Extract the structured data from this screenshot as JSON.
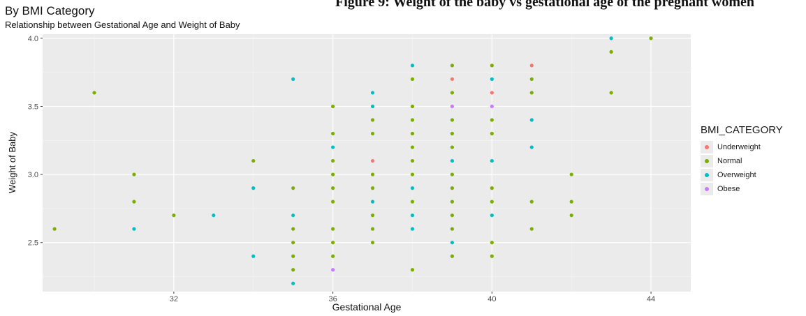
{
  "header": {
    "cropped_heading": "Figure 9: Weight of the baby vs gestational age of the pregnant women"
  },
  "chart_data": {
    "type": "scatter",
    "title": "By BMI Category",
    "subtitle": "Relationship between Gestational Age and Weight of Baby",
    "xlabel": "Gestational Age",
    "ylabel": "Weight of Baby",
    "xlim": [
      28.7,
      45.0
    ],
    "ylim": [
      2.14,
      4.03
    ],
    "x_ticks": [
      32,
      36,
      40,
      44
    ],
    "y_ticks": [
      2.5,
      3.0,
      3.5,
      4.0
    ],
    "y_tick_labels": [
      "2.5",
      "3.0",
      "3.5",
      "4.0"
    ],
    "grid": true,
    "legend_position": "right",
    "legend": {
      "title": "BMI_CATEGORY",
      "entries": [
        {
          "name": "Underweight",
          "color": "#f8766d"
        },
        {
          "name": "Normal",
          "color": "#7cae00"
        },
        {
          "name": "Overweight",
          "color": "#00bfc4"
        },
        {
          "name": "Obese",
          "color": "#c77cff"
        }
      ]
    },
    "series": [
      {
        "name": "Underweight",
        "color": "#f8766d",
        "points": [
          [
            37,
            3.1
          ],
          [
            39,
            3.7
          ],
          [
            40,
            3.6
          ],
          [
            41,
            3.8
          ]
        ]
      },
      {
        "name": "Normal",
        "color": "#7cae00",
        "points": [
          [
            29,
            2.6
          ],
          [
            30,
            3.6
          ],
          [
            31,
            3.0
          ],
          [
            31,
            2.8
          ],
          [
            32,
            2.7
          ],
          [
            34,
            3.1
          ],
          [
            35,
            2.9
          ],
          [
            35,
            2.6
          ],
          [
            35,
            2.5
          ],
          [
            35,
            2.4
          ],
          [
            35,
            2.3
          ],
          [
            36,
            3.5
          ],
          [
            36,
            3.3
          ],
          [
            36,
            3.1
          ],
          [
            36,
            3.0
          ],
          [
            36,
            2.9
          ],
          [
            36,
            2.8
          ],
          [
            36,
            2.6
          ],
          [
            36,
            2.5
          ],
          [
            36,
            2.4
          ],
          [
            37,
            3.4
          ],
          [
            37,
            3.3
          ],
          [
            37,
            3.0
          ],
          [
            37,
            2.9
          ],
          [
            37,
            2.7
          ],
          [
            37,
            2.6
          ],
          [
            37,
            2.5
          ],
          [
            38,
            3.7
          ],
          [
            38,
            3.5
          ],
          [
            38,
            3.4
          ],
          [
            38,
            3.3
          ],
          [
            38,
            3.2
          ],
          [
            38,
            3.1
          ],
          [
            38,
            3.0
          ],
          [
            38,
            2.8
          ],
          [
            38,
            2.3
          ],
          [
            39,
            3.8
          ],
          [
            39,
            3.6
          ],
          [
            39,
            3.4
          ],
          [
            39,
            3.3
          ],
          [
            39,
            3.2
          ],
          [
            39,
            3.0
          ],
          [
            39,
            2.9
          ],
          [
            39,
            2.8
          ],
          [
            39,
            2.7
          ],
          [
            39,
            2.6
          ],
          [
            39,
            2.4
          ],
          [
            40,
            3.8
          ],
          [
            40,
            3.4
          ],
          [
            40,
            3.3
          ],
          [
            40,
            2.9
          ],
          [
            40,
            2.8
          ],
          [
            40,
            2.5
          ],
          [
            40,
            2.4
          ],
          [
            41,
            3.7
          ],
          [
            41,
            3.6
          ],
          [
            41,
            2.8
          ],
          [
            41,
            2.6
          ],
          [
            42,
            3.0
          ],
          [
            42,
            2.8
          ],
          [
            42,
            2.7
          ],
          [
            43,
            3.9
          ],
          [
            43,
            3.6
          ],
          [
            44,
            4.0
          ]
        ]
      },
      {
        "name": "Overweight",
        "color": "#00bfc4",
        "points": [
          [
            31,
            2.6
          ],
          [
            33,
            2.7
          ],
          [
            34,
            2.9
          ],
          [
            34,
            2.4
          ],
          [
            35,
            3.7
          ],
          [
            35,
            2.7
          ],
          [
            35,
            2.2
          ],
          [
            36,
            3.2
          ],
          [
            37,
            3.6
          ],
          [
            37,
            3.5
          ],
          [
            37,
            2.8
          ],
          [
            38,
            3.8
          ],
          [
            38,
            2.9
          ],
          [
            38,
            2.7
          ],
          [
            38,
            2.6
          ],
          [
            39,
            3.1
          ],
          [
            39,
            2.5
          ],
          [
            40,
            3.7
          ],
          [
            40,
            3.1
          ],
          [
            40,
            2.7
          ],
          [
            41,
            3.4
          ],
          [
            41,
            3.2
          ],
          [
            43,
            4.0
          ]
        ]
      },
      {
        "name": "Obese",
        "color": "#c77cff",
        "points": [
          [
            36,
            2.3
          ],
          [
            39,
            3.5
          ],
          [
            40,
            3.5
          ]
        ]
      }
    ]
  }
}
